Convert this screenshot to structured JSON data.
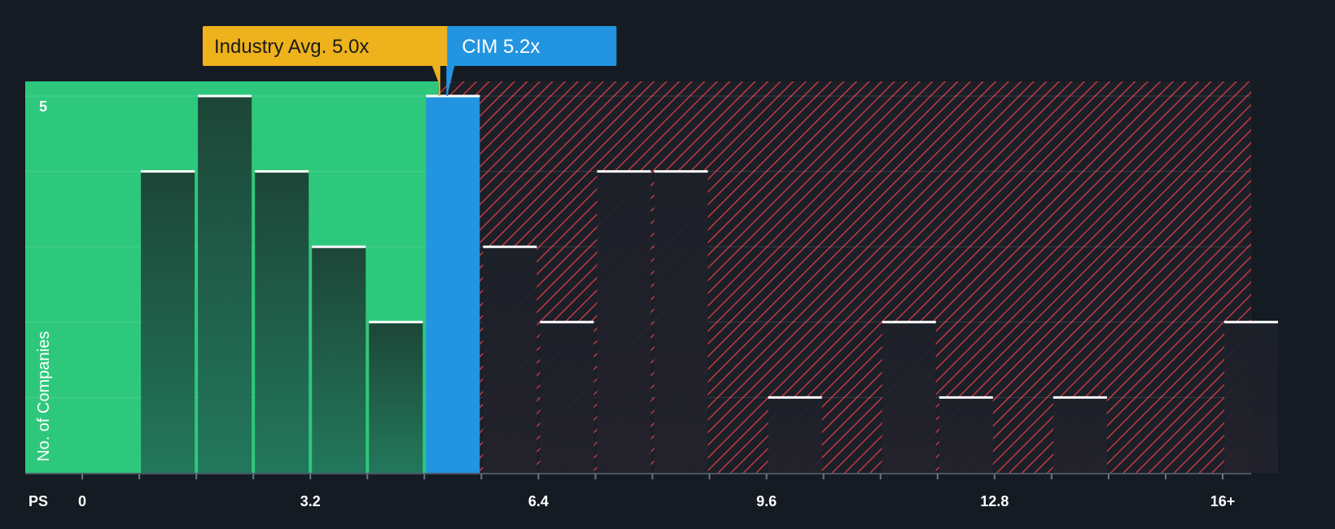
{
  "chart_data": {
    "type": "bar",
    "x_axis_prefix": "PS",
    "ylabel": "No. of Companies",
    "y_tick_labels": [
      {
        "value": 5,
        "label": "5"
      }
    ],
    "ylim": [
      0,
      5
    ],
    "x_ticks": [
      {
        "value": 0,
        "label": "0"
      },
      {
        "value": 3.2,
        "label": "3.2"
      },
      {
        "value": 6.4,
        "label": "6.4"
      },
      {
        "value": 9.6,
        "label": "9.6"
      },
      {
        "value": 12.8,
        "label": "12.8"
      },
      {
        "value": 16,
        "label": "16+"
      }
    ],
    "xlim": [
      -0.8,
      16.4
    ],
    "bin_width": 0.8,
    "bins": [
      {
        "start": 0.8,
        "count": 4
      },
      {
        "start": 1.6,
        "count": 5
      },
      {
        "start": 2.4,
        "count": 4
      },
      {
        "start": 3.2,
        "count": 3
      },
      {
        "start": 4.0,
        "count": 2
      },
      {
        "start": 4.8,
        "count": 5,
        "highlight": true
      },
      {
        "start": 5.6,
        "count": 3
      },
      {
        "start": 6.4,
        "count": 2
      },
      {
        "start": 7.2,
        "count": 4
      },
      {
        "start": 8.0,
        "count": 4
      },
      {
        "start": 9.6,
        "count": 1
      },
      {
        "start": 11.2,
        "count": 2
      },
      {
        "start": 12.0,
        "count": 1
      },
      {
        "start": 13.6,
        "count": 1
      },
      {
        "start": 16.0,
        "count": 2
      }
    ],
    "industry_avg": {
      "label": "Industry Avg. 5.0x",
      "value": 5.0
    },
    "company": {
      "label": "CIM 5.2x",
      "value": 5.2
    },
    "grid": true,
    "colors": {
      "background": "#151b23",
      "undervalued_zone": "#2ec87d",
      "overvalued_zone": "#7a2a2e",
      "hatch": "#c4393e",
      "bar_green_zone": "#1e4a3b",
      "bar_red_zone": "#1b212b",
      "highlight_bar": "#2394e0",
      "industry_callout": "#edb21c",
      "company_callout": "#2394e0",
      "cap_line": "#ffffff"
    }
  }
}
